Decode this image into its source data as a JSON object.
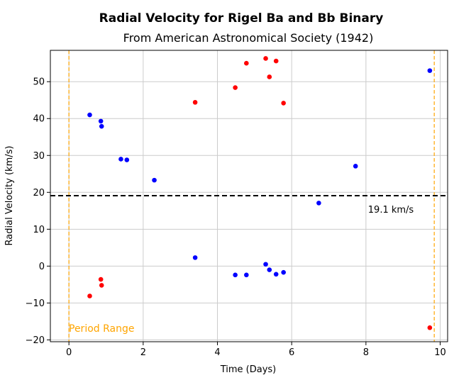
{
  "chart_data": {
    "type": "scatter",
    "title": "Radial Velocity for Rigel Ba and Bb Binary",
    "subtitle": "From American Astronomical Society (1942)",
    "xlabel": "Time (Days)",
    "ylabel": "Radial Velocity (km/s)",
    "xlim": [
      -0.5,
      10.2
    ],
    "ylim": [
      -20.5,
      58.5
    ],
    "xticks": [
      0,
      2,
      4,
      6,
      8,
      10
    ],
    "yticks": [
      -20,
      -10,
      0,
      10,
      20,
      30,
      40,
      50
    ],
    "grid": true,
    "series": [
      {
        "color": "#0000ff",
        "points": [
          [
            0.56,
            41.0
          ],
          [
            0.86,
            39.3
          ],
          [
            0.88,
            37.9
          ],
          [
            1.4,
            29.0
          ],
          [
            1.56,
            28.8
          ],
          [
            2.3,
            23.3
          ],
          [
            3.4,
            2.3
          ],
          [
            4.48,
            -2.4
          ],
          [
            4.78,
            -2.4
          ],
          [
            5.3,
            0.5
          ],
          [
            5.4,
            -1.0
          ],
          [
            5.58,
            -2.2
          ],
          [
            5.78,
            -1.7
          ],
          [
            6.73,
            17.1
          ],
          [
            7.72,
            27.1
          ],
          [
            9.72,
            53.0
          ]
        ]
      },
      {
        "color": "#ff0000",
        "points": [
          [
            0.56,
            -8.1
          ],
          [
            0.86,
            -3.6
          ],
          [
            0.88,
            -5.2
          ],
          [
            3.4,
            44.4
          ],
          [
            4.48,
            48.4
          ],
          [
            4.78,
            55.0
          ],
          [
            5.3,
            56.3
          ],
          [
            5.4,
            51.3
          ],
          [
            5.58,
            55.6
          ],
          [
            5.78,
            44.2
          ],
          [
            9.72,
            -16.7
          ]
        ]
      }
    ],
    "hline": {
      "y": 19.1,
      "color": "#000000",
      "label": "19.1 km/s"
    },
    "vlines": [
      {
        "x": 0.0,
        "color": "#ffa500"
      },
      {
        "x": 9.84,
        "color": "#ffa500"
      }
    ],
    "period_label": {
      "text": "Period Range",
      "color": "#ffa500"
    }
  }
}
